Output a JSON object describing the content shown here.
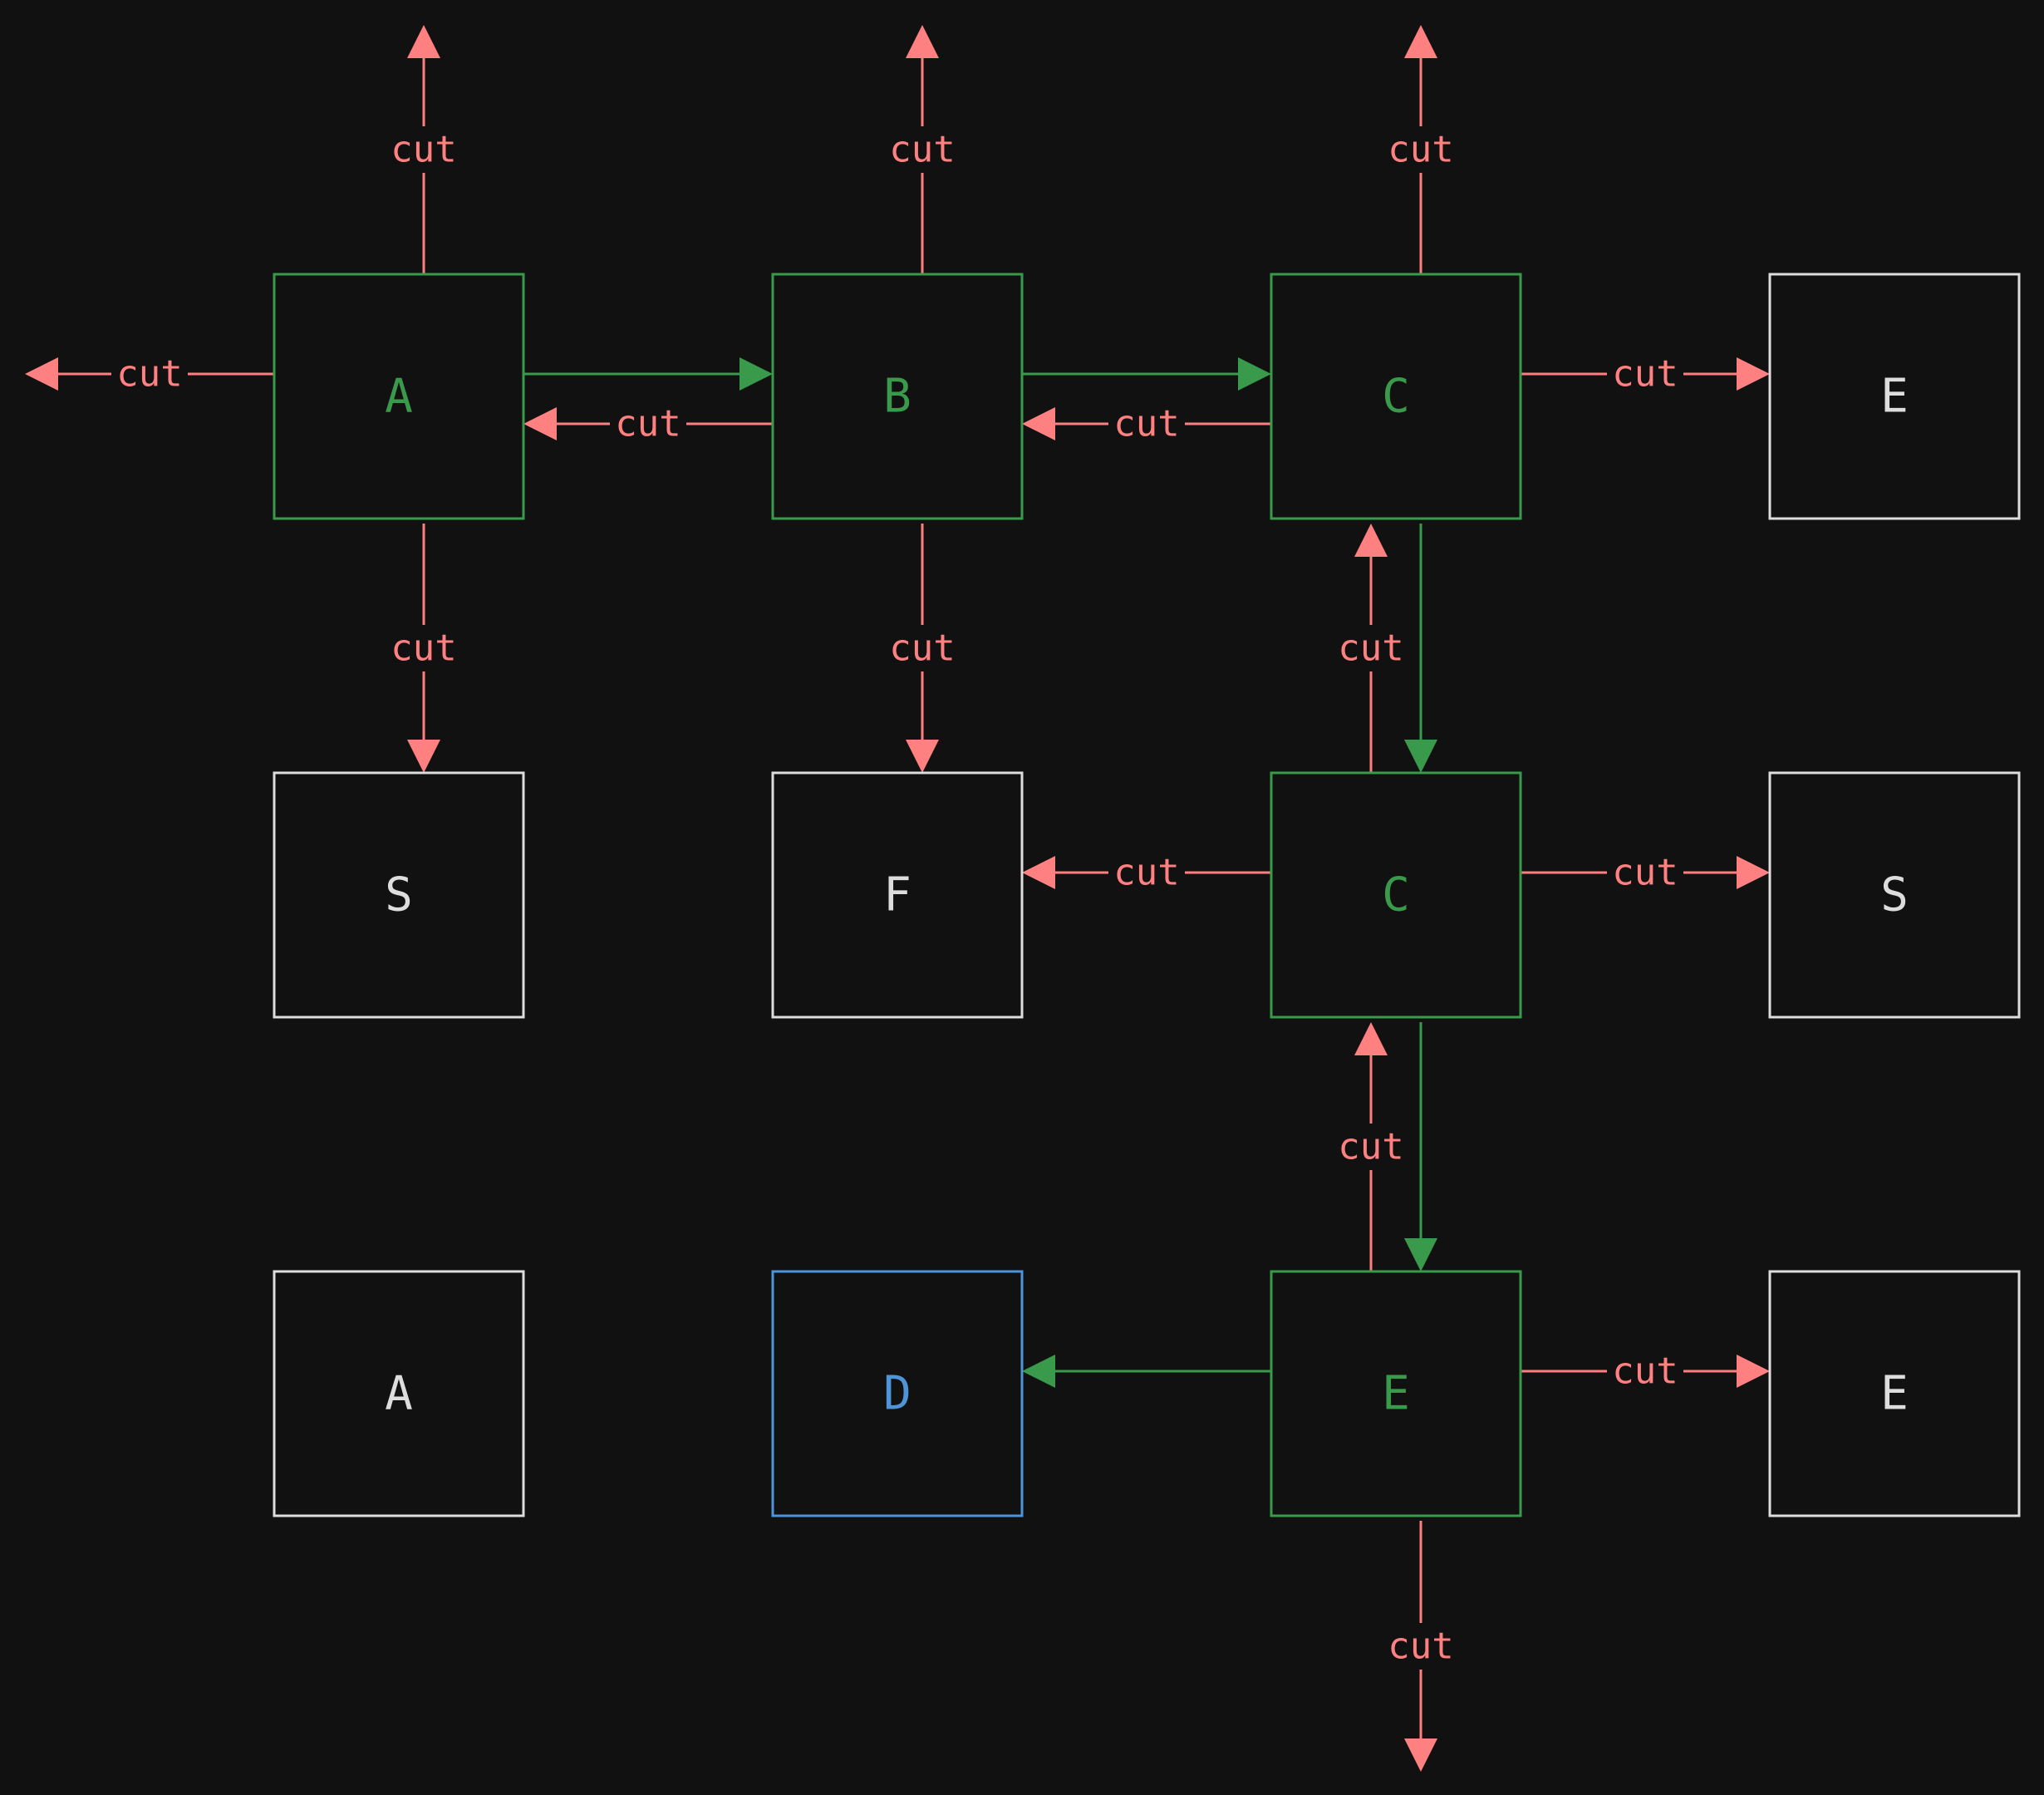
{
  "colors": {
    "background": "#111111",
    "path": "#3a9a4b",
    "cut": "#ff8080",
    "neutral": "#dddddd",
    "goal": "#4d94d8"
  },
  "nodes": [
    {
      "id": "n00",
      "row": 0,
      "col": 0,
      "label": "A",
      "state": "path"
    },
    {
      "id": "n01",
      "row": 0,
      "col": 1,
      "label": "B",
      "state": "path"
    },
    {
      "id": "n02",
      "row": 0,
      "col": 2,
      "label": "C",
      "state": "path"
    },
    {
      "id": "n03",
      "row": 0,
      "col": 3,
      "label": "E",
      "state": "neutral"
    },
    {
      "id": "n10",
      "row": 1,
      "col": 0,
      "label": "S",
      "state": "neutral"
    },
    {
      "id": "n11",
      "row": 1,
      "col": 1,
      "label": "F",
      "state": "neutral"
    },
    {
      "id": "n12",
      "row": 1,
      "col": 2,
      "label": "C",
      "state": "path"
    },
    {
      "id": "n13",
      "row": 1,
      "col": 3,
      "label": "S",
      "state": "neutral"
    },
    {
      "id": "n20",
      "row": 2,
      "col": 0,
      "label": "A",
      "state": "neutral"
    },
    {
      "id": "n21",
      "row": 2,
      "col": 1,
      "label": "D",
      "state": "goal"
    },
    {
      "id": "n22",
      "row": 2,
      "col": 2,
      "label": "E",
      "state": "path"
    },
    {
      "id": "n23",
      "row": 2,
      "col": 3,
      "label": "E",
      "state": "neutral"
    }
  ],
  "edges": [
    {
      "from": "n00",
      "to": "up",
      "kind": "cut",
      "label": "cut"
    },
    {
      "from": "n00",
      "to": "left",
      "kind": "cut",
      "label": "cut"
    },
    {
      "from": "n00",
      "to": "n01",
      "kind": "path",
      "label": ""
    },
    {
      "from": "n00",
      "to": "n10",
      "kind": "cut",
      "label": "cut"
    },
    {
      "from": "n01",
      "to": "up",
      "kind": "cut",
      "label": "cut"
    },
    {
      "from": "n01",
      "to": "n00",
      "kind": "cut",
      "label": "cut"
    },
    {
      "from": "n01",
      "to": "n02",
      "kind": "path",
      "label": ""
    },
    {
      "from": "n01",
      "to": "n11",
      "kind": "cut",
      "label": "cut"
    },
    {
      "from": "n02",
      "to": "up",
      "kind": "cut",
      "label": "cut"
    },
    {
      "from": "n02",
      "to": "n01",
      "kind": "cut",
      "label": "cut"
    },
    {
      "from": "n02",
      "to": "n03",
      "kind": "cut",
      "label": "cut"
    },
    {
      "from": "n02",
      "to": "n12",
      "kind": "path",
      "label": ""
    },
    {
      "from": "n12",
      "to": "n02",
      "kind": "cut",
      "label": "cut"
    },
    {
      "from": "n12",
      "to": "n11",
      "kind": "cut",
      "label": "cut"
    },
    {
      "from": "n12",
      "to": "n13",
      "kind": "cut",
      "label": "cut"
    },
    {
      "from": "n12",
      "to": "n22",
      "kind": "path",
      "label": ""
    },
    {
      "from": "n22",
      "to": "n12",
      "kind": "cut",
      "label": "cut"
    },
    {
      "from": "n22",
      "to": "n21",
      "kind": "path",
      "label": ""
    },
    {
      "from": "n22",
      "to": "n23",
      "kind": "cut",
      "label": "cut"
    },
    {
      "from": "n22",
      "to": "down",
      "kind": "cut",
      "label": "cut"
    }
  ]
}
